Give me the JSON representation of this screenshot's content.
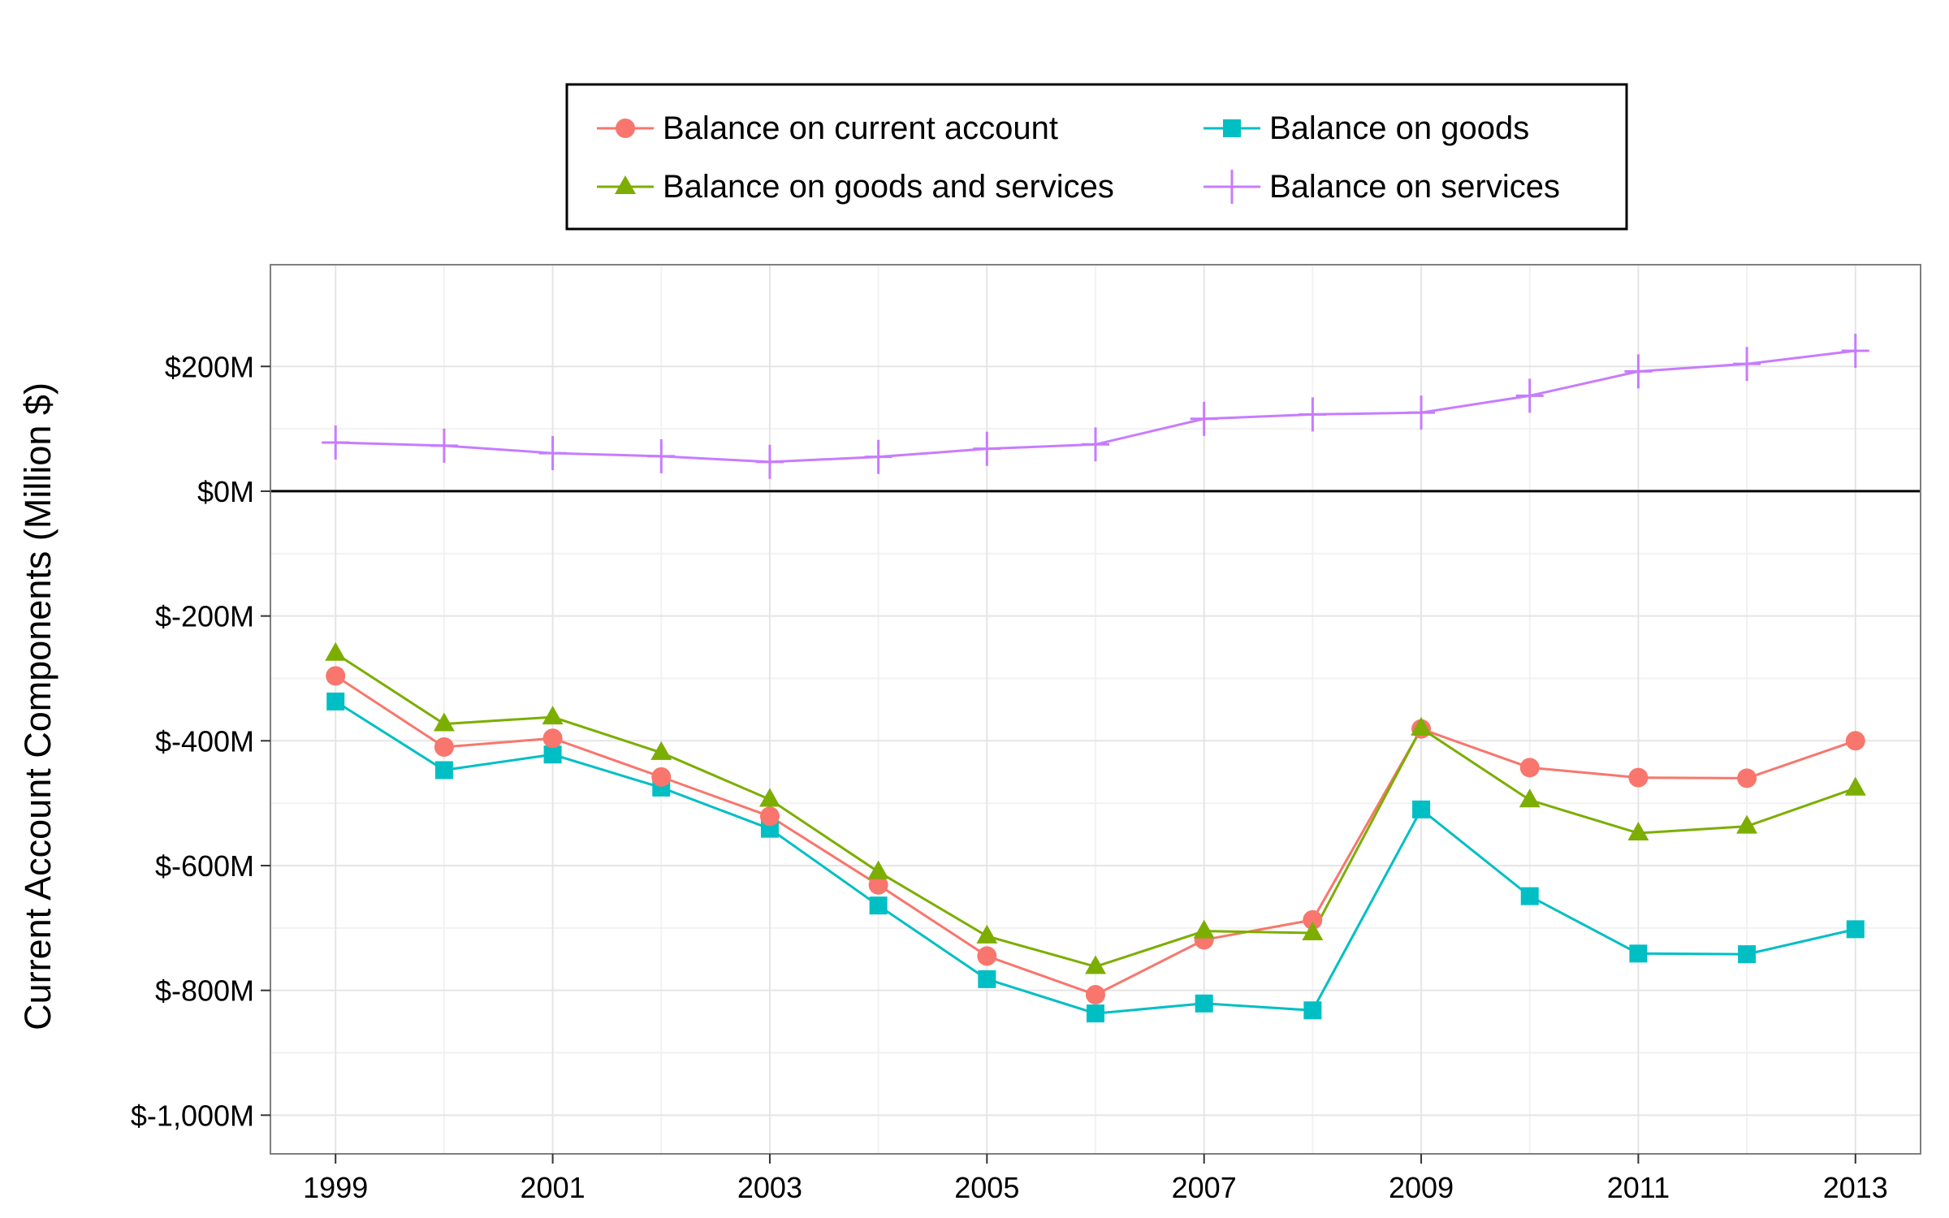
{
  "chart_data": {
    "type": "line",
    "title": "",
    "xlabel": "",
    "ylabel": "Current Account Components (Million $)",
    "x": [
      1999,
      2000,
      2001,
      2002,
      2003,
      2004,
      2005,
      2006,
      2007,
      2008,
      2009,
      2010,
      2011,
      2012,
      2013
    ],
    "x_ticks": [
      "1999",
      "2001",
      "2003",
      "2005",
      "2007",
      "2009",
      "2011",
      "2013"
    ],
    "y_ticks": [
      {
        "value": 200,
        "label": "$200M"
      },
      {
        "value": 0,
        "label": "$0M"
      },
      {
        "value": -200,
        "label": "$-200M"
      },
      {
        "value": -400,
        "label": "$-400M"
      },
      {
        "value": -600,
        "label": "$-600M"
      },
      {
        "value": -800,
        "label": "$-800M"
      },
      {
        "value": -1000,
        "label": "$-1,000M"
      }
    ],
    "xlim": [
      1998.4,
      2013.6
    ],
    "ylim": [
      -1062,
      363
    ],
    "grid": true,
    "zero_line": true,
    "legend_position": "top",
    "series": [
      {
        "name": "Balance on current account",
        "color": "#F8766D",
        "marker": "circle",
        "values": [
          -296,
          -410,
          -396,
          -458,
          -521,
          -631,
          -745,
          -807,
          -719,
          -687,
          -381,
          -443,
          -459,
          -460,
          -400
        ]
      },
      {
        "name": "Balance on goods",
        "color": "#00BFC4",
        "marker": "square",
        "values": [
          -337,
          -447,
          -422,
          -475,
          -541,
          -664,
          -782,
          -837,
          -821,
          -832,
          -510,
          -649,
          -741,
          -742,
          -702
        ]
      },
      {
        "name": "Balance on goods and services",
        "color": "#7CAE00",
        "marker": "triangle",
        "values": [
          -260,
          -373,
          -362,
          -419,
          -494,
          -610,
          -713,
          -762,
          -705,
          -708,
          -380,
          -495,
          -548,
          -537,
          -476
        ]
      },
      {
        "name": "Balance on services",
        "color": "#C77CFF",
        "marker": "cross",
        "values": [
          78,
          73,
          61,
          56,
          47,
          55,
          68,
          75,
          116,
          123,
          126,
          153,
          192,
          204,
          225
        ]
      }
    ]
  }
}
